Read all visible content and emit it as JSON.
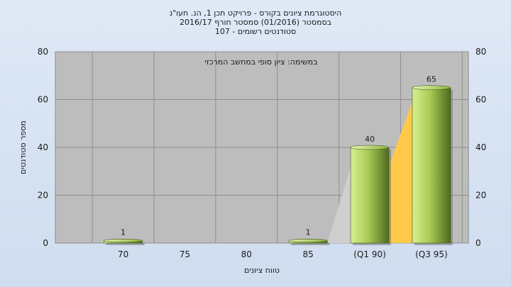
{
  "chart_data": {
    "type": "bar",
    "title_lines": [
      "היסטוגרמת ציונים בקורס - פרויקט תכן 1, הנ. חעו\"נ",
      "בסמסטר  (01/2016)  סמסטר חורף 2016/17",
      "סטודנטים רשומים - 107"
    ],
    "annotation": "במשימה: ציון סופי במחשב המרכזי",
    "xlabel": "טווח ציונים",
    "ylabel": "מספר סטודנטים",
    "categories": [
      "70",
      "75",
      "80",
      "85",
      "(Q1 90)",
      "(Q3 95)"
    ],
    "values": [
      1,
      0,
      0,
      1,
      40,
      65
    ],
    "data_labels": [
      "1",
      "",
      "",
      "1",
      "40",
      "65"
    ],
    "ylim": [
      0,
      80
    ],
    "yticks": [
      "0",
      "20",
      "40",
      "60",
      "80"
    ],
    "grid": true,
    "colors": {
      "plot_bg": "#bdbdbd",
      "bar_light": "#c4e07a",
      "bar_dark": "#4f6a1e",
      "quartile_fill": "#ffc94a",
      "quartile_shadow": "#cfcfcf"
    }
  }
}
